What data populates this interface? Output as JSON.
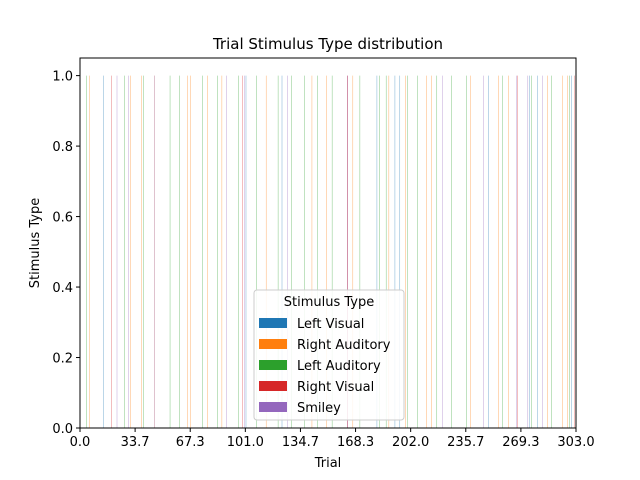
{
  "chart_data": {
    "type": "bar",
    "title": "Trial Stimulus Type distribution",
    "xlabel": "Trial",
    "ylabel": "Stimulus Type",
    "xlim": [
      0,
      303
    ],
    "ylim": [
      0,
      1.05
    ],
    "x_ticks": [
      "0.0",
      "33.7",
      "67.3",
      "101.0",
      "134.7",
      "168.3",
      "202.0",
      "235.7",
      "269.3",
      "303.0"
    ],
    "y_ticks": [
      "0.0",
      "0.2",
      "0.4",
      "0.6",
      "0.8",
      "1.0"
    ],
    "grid": false,
    "legend": {
      "title": "Stimulus Type",
      "placement": "lower-center"
    },
    "series": [
      {
        "name": "Left Visual",
        "color": "#1f77b4",
        "x": [
          15,
          102,
          124,
          182,
          193,
          196,
          250,
          275,
          280,
          301
        ],
        "values": [
          1,
          1,
          1,
          1,
          1,
          1,
          1,
          1,
          1,
          1
        ]
      },
      {
        "name": "Right Auditory",
        "color": "#ff7f0e",
        "x": [
          6,
          31,
          38,
          46,
          66,
          68,
          78,
          87,
          114,
          142,
          151,
          167,
          189,
          199,
          212,
          215,
          239,
          256,
          262,
          286,
          295,
          298
        ],
        "values": [
          1,
          1,
          1,
          1,
          1,
          1,
          1,
          1,
          1,
          1,
          1,
          1,
          1,
          1,
          1,
          1,
          1,
          1,
          1,
          1,
          1,
          1
        ]
      },
      {
        "name": "Left Auditory",
        "color": "#2ca02c",
        "x": [
          4,
          27,
          39,
          55,
          61,
          75,
          84,
          97,
          108,
          121,
          129,
          137,
          145,
          154,
          171,
          183,
          187,
          200,
          206,
          218,
          227,
          236,
          258,
          276,
          288,
          299
        ],
        "values": [
          1,
          1,
          1,
          1,
          1,
          1,
          1,
          1,
          1,
          1,
          1,
          1,
          1,
          1,
          1,
          1,
          1,
          1,
          1,
          1,
          1,
          1,
          1,
          1,
          1,
          1
        ]
      },
      {
        "name": "Right Visual",
        "color": "#d62728",
        "x": [
          19,
          99,
          163,
          267,
          302
        ],
        "values": [
          1,
          1,
          1,
          1,
          1
        ]
      },
      {
        "name": "Smiley",
        "color": "#9467bd",
        "x": [
          22,
          29,
          45,
          89,
          100,
          126,
          163,
          221,
          246,
          266,
          273,
          282
        ],
        "values": [
          1,
          1,
          1,
          1,
          1,
          1,
          1,
          1,
          1,
          1,
          1,
          1
        ]
      }
    ]
  }
}
